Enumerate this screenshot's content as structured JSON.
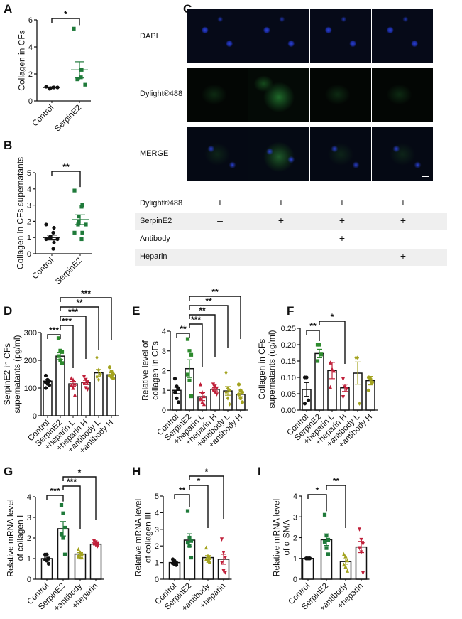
{
  "panel_letters": [
    "A",
    "B",
    "C",
    "D",
    "E",
    "F",
    "G",
    "H",
    "I"
  ],
  "colors": {
    "control": "#111111",
    "serpine2": "#1f7a3a",
    "serpine2_bright": "#2e8b2e",
    "heparin": "#c0203a",
    "antibody": "#a3a31f"
  },
  "microscopy": {
    "row_labels": [
      "DAPI",
      "Dylight®488",
      "MERGE"
    ],
    "table": {
      "rows": [
        {
          "label": "Dylight®488",
          "values": [
            "+",
            "+",
            "+",
            "+"
          ]
        },
        {
          "label": "SerpinE2",
          "values": [
            "–",
            "+",
            "+",
            "+"
          ]
        },
        {
          "label": "Antibody",
          "values": [
            "–",
            "–",
            "+",
            "–"
          ]
        },
        {
          "label": "Heparin",
          "values": [
            "–",
            "–",
            "–",
            "+"
          ]
        }
      ]
    }
  },
  "chart_data": [
    {
      "panel": "A",
      "type": "scatter",
      "ylabel": "Collagen in CFs",
      "ylim": [
        0,
        6
      ],
      "yticks": [
        "0",
        "2",
        "4",
        "6"
      ],
      "ytick_values": [
        0,
        2,
        4,
        6
      ],
      "categories": [
        "Control",
        "SerpinE2"
      ],
      "groups": [
        {
          "mean": 1.0,
          "sem": 0.03,
          "points": [
            1.05,
            1.0,
            1.0,
            0.95,
            0.9,
            1.0
          ],
          "color": "#111111",
          "marker": "circle"
        },
        {
          "mean": 2.3,
          "sem": 0.6,
          "points": [
            5.35,
            2.3,
            1.75,
            1.65,
            1.6,
            1.2
          ],
          "color": "#1f7a3a",
          "marker": "square"
        }
      ],
      "bars": false,
      "significance": [
        {
          "from": 0,
          "to": 1,
          "text": "*"
        }
      ]
    },
    {
      "panel": "B",
      "type": "scatter",
      "ylabel": "Collagen in CFs supernatants",
      "ylim": [
        0,
        5
      ],
      "yticks": [
        "0",
        "1",
        "2",
        "3",
        "4",
        "5"
      ],
      "ytick_values": [
        0,
        1,
        2,
        3,
        4,
        5
      ],
      "categories": [
        "Control",
        "SerpinE2"
      ],
      "groups": [
        {
          "mean": 1.0,
          "sem": 0.15,
          "points": [
            1.8,
            1.6,
            1.3,
            1.05,
            1.0,
            0.9,
            0.9,
            0.7,
            0.3,
            1.0
          ],
          "color": "#111111",
          "marker": "circle"
        },
        {
          "mean": 2.1,
          "sem": 0.3,
          "points": [
            3.9,
            3.0,
            2.9,
            2.3,
            1.8,
            1.8,
            1.3,
            1.3,
            0.9,
            2.0
          ],
          "color": "#1f7a3a",
          "marker": "square"
        }
      ],
      "bars": false,
      "significance": [
        {
          "from": 0,
          "to": 1,
          "text": "**"
        }
      ]
    },
    {
      "panel": "D",
      "type": "bar",
      "ylabel": "SerpinE2 in CFs supernatants  (pg/ml)",
      "ylim": [
        0,
        300
      ],
      "yticks": [
        "0",
        "100",
        "200",
        "300"
      ],
      "ytick_values": [
        0,
        100,
        200,
        300
      ],
      "categories": [
        "Control",
        "SerpinE2",
        "+heparin L",
        "+heparin H",
        "+antibody L",
        "+antibody H"
      ],
      "groups": [
        {
          "mean": 125,
          "sem": 6,
          "points": [
            145,
            130,
            125,
            120,
            115,
            110,
            100
          ],
          "color": "#111111",
          "marker": "circle"
        },
        {
          "mean": 215,
          "sem": 12,
          "points": [
            280,
            235,
            230,
            215,
            200,
            190
          ],
          "color": "#2e8b2e",
          "marker": "square"
        },
        {
          "mean": 115,
          "sem": 9,
          "points": [
            135,
            130,
            115,
            110,
            100,
            75
          ],
          "color": "#c0203a",
          "marker": "triangle"
        },
        {
          "mean": 120,
          "sem": 8,
          "points": [
            140,
            130,
            120,
            115,
            100,
            95
          ],
          "color": "#c0203a",
          "marker": "triangle-down"
        },
        {
          "mean": 155,
          "sem": 12,
          "points": [
            210,
            165,
            150,
            140,
            130
          ],
          "color": "#a3a31f",
          "marker": "diamond"
        },
        {
          "mean": 148,
          "sem": 7,
          "points": [
            175,
            160,
            150,
            145,
            140,
            135
          ],
          "color": "#a3a31f",
          "marker": "circle"
        }
      ],
      "bars": true,
      "significance": [
        {
          "from": 0,
          "to": 1,
          "text": "***"
        },
        {
          "from": 1,
          "to": 2,
          "text": "***"
        },
        {
          "from": 1,
          "to": 3,
          "text": "***"
        },
        {
          "from": 1,
          "to": 4,
          "text": "**"
        },
        {
          "from": 1,
          "to": 5,
          "text": "***"
        }
      ]
    },
    {
      "panel": "E",
      "type": "bar",
      "ylabel": "Relative level of collagen in CFs",
      "ylim": [
        0,
        4
      ],
      "yticks": [
        "0",
        "1",
        "2",
        "3",
        "4"
      ],
      "ytick_values": [
        0,
        1,
        2,
        3,
        4
      ],
      "categories": [
        "Control",
        "SerpinE2",
        "+heparin L",
        "+heparin H",
        "+antibody L",
        "+antibody H"
      ],
      "groups": [
        {
          "mean": 1.0,
          "sem": 0.17,
          "points": [
            1.6,
            1.2,
            1.1,
            0.9,
            0.6,
            0.4
          ],
          "color": "#111111",
          "marker": "circle"
        },
        {
          "mean": 2.1,
          "sem": 0.45,
          "points": [
            3.6,
            3.0,
            2.8,
            1.8,
            1.5,
            0.7
          ],
          "color": "#2e8b2e",
          "marker": "square"
        },
        {
          "mean": 0.68,
          "sem": 0.2,
          "points": [
            1.3,
            0.9,
            0.7,
            0.6,
            0.4,
            0.3
          ],
          "color": "#c0203a",
          "marker": "triangle"
        },
        {
          "mean": 1.05,
          "sem": 0.08,
          "points": [
            1.3,
            1.2,
            1.1,
            1.0,
            0.9,
            0.8
          ],
          "color": "#c0203a",
          "marker": "triangle-down"
        },
        {
          "mean": 0.97,
          "sem": 0.22,
          "points": [
            1.9,
            1.1,
            1.0,
            0.9,
            0.6,
            0.3
          ],
          "color": "#a3a31f",
          "marker": "diamond"
        },
        {
          "mean": 0.8,
          "sem": 0.12,
          "points": [
            1.3,
            1.0,
            0.9,
            0.8,
            0.6,
            0.4
          ],
          "color": "#a3a31f",
          "marker": "circle"
        }
      ],
      "bars": true,
      "significance": [
        {
          "from": 0,
          "to": 1,
          "text": "**"
        },
        {
          "from": 1,
          "to": 2,
          "text": "***"
        },
        {
          "from": 1,
          "to": 3,
          "text": "**"
        },
        {
          "from": 1,
          "to": 4,
          "text": "**"
        },
        {
          "from": 1,
          "to": 5,
          "text": "**"
        }
      ]
    },
    {
      "panel": "F",
      "type": "bar",
      "ylabel": "Collagen in CFs supernatants (ug/ml)",
      "ylim": [
        0,
        0.25
      ],
      "yticks": [
        "0.00",
        "0.05",
        "0.10",
        "0.15",
        "0.20",
        "0.25"
      ],
      "ytick_values": [
        0,
        0.05,
        0.1,
        0.15,
        0.2,
        0.25
      ],
      "categories": [
        "Control",
        "SerpinE2",
        "+heparin L",
        "+heparin H",
        "+antibody L",
        "+antibody H"
      ],
      "groups": [
        {
          "mean": 0.063,
          "sem": 0.021,
          "points": [
            0.1,
            0.1,
            0.03,
            0.02
          ],
          "color": "#111111",
          "marker": "circle"
        },
        {
          "mean": 0.173,
          "sem": 0.013,
          "points": [
            0.2,
            0.2,
            0.17,
            0.15
          ],
          "color": "#2e8b2e",
          "marker": "square"
        },
        {
          "mean": 0.121,
          "sem": 0.025,
          "points": [
            0.145,
            0.125,
            0.12,
            0.07
          ],
          "color": "#c0203a",
          "marker": "triangle"
        },
        {
          "mean": 0.068,
          "sem": 0.011,
          "points": [
            0.095,
            0.07,
            0.065,
            0.04
          ],
          "color": "#c0203a",
          "marker": "triangle-down"
        },
        {
          "mean": 0.113,
          "sem": 0.034,
          "points": [
            0.16,
            0.16,
            0.02
          ],
          "color": "#a3a31f",
          "marker": "diamond"
        },
        {
          "mean": 0.09,
          "sem": 0.013,
          "points": [
            0.1,
            0.095,
            0.085,
            0.06
          ],
          "color": "#a3a31f",
          "marker": "circle"
        }
      ],
      "bars": true,
      "significance": [
        {
          "from": 0,
          "to": 1,
          "text": "**"
        },
        {
          "from": 1,
          "to": 3,
          "text": "*"
        }
      ]
    },
    {
      "panel": "G",
      "type": "bar",
      "ylabel": "Relative mRNA level of collagen I",
      "ylim": [
        0,
        4
      ],
      "yticks": [
        "0",
        "1",
        "2",
        "3",
        "4"
      ],
      "ytick_values": [
        0,
        1,
        2,
        3,
        4
      ],
      "categories": [
        "Control",
        "SerpinE2",
        "+antibody",
        "+heparin"
      ],
      "groups": [
        {
          "mean": 1.0,
          "sem": 0.07,
          "points": [
            1.2,
            1.2,
            1.0,
            0.95,
            0.9,
            0.75
          ],
          "color": "#111111",
          "marker": "circle"
        },
        {
          "mean": 2.45,
          "sem": 0.35,
          "points": [
            3.6,
            3.2,
            2.5,
            2.2,
            2.0,
            1.2
          ],
          "color": "#1f7a3a",
          "marker": "square"
        },
        {
          "mean": 1.22,
          "sem": 0.07,
          "points": [
            1.45,
            1.3,
            1.25,
            1.1,
            1.05,
            1.05
          ],
          "color": "#a3a31f",
          "marker": "triangle"
        },
        {
          "mean": 1.7,
          "sem": 0.04,
          "points": [
            1.85,
            1.8,
            1.75,
            1.7,
            1.65,
            1.6
          ],
          "color": "#c0203a",
          "marker": "triangle-down"
        }
      ],
      "bars": true,
      "significance": [
        {
          "from": 0,
          "to": 1,
          "text": "***"
        },
        {
          "from": 1,
          "to": 2,
          "text": "***"
        },
        {
          "from": 1,
          "to": 3,
          "text": "*"
        }
      ]
    },
    {
      "panel": "H",
      "type": "bar",
      "ylabel": "Relative mRNA level of collagen III",
      "ylim": [
        0,
        5
      ],
      "yticks": [
        "0",
        "1",
        "2",
        "3",
        "4",
        "5"
      ],
      "ytick_values": [
        0,
        1,
        2,
        3,
        4,
        5
      ],
      "categories": [
        "Control",
        "SerpinE2",
        "+antibody",
        "+heparin"
      ],
      "groups": [
        {
          "mean": 1.0,
          "sem": 0.06,
          "points": [
            1.2,
            1.1,
            1.0,
            0.95,
            0.9,
            0.85
          ],
          "color": "#111111",
          "marker": "circle"
        },
        {
          "mean": 2.35,
          "sem": 0.38,
          "points": [
            4.1,
            2.5,
            2.3,
            2.2,
            2.0,
            1.3
          ],
          "color": "#1f7a3a",
          "marker": "square"
        },
        {
          "mean": 1.3,
          "sem": 0.12,
          "points": [
            1.9,
            1.4,
            1.3,
            1.2,
            1.1,
            1.05
          ],
          "color": "#a3a31f",
          "marker": "triangle"
        },
        {
          "mean": 1.2,
          "sem": 0.3,
          "points": [
            2.4,
            1.6,
            1.3,
            1.0,
            0.5,
            0.4
          ],
          "color": "#c0203a",
          "marker": "triangle-down"
        }
      ],
      "bars": true,
      "significance": [
        {
          "from": 0,
          "to": 1,
          "text": "**"
        },
        {
          "from": 1,
          "to": 2,
          "text": "*"
        },
        {
          "from": 1,
          "to": 3,
          "text": "*"
        }
      ]
    },
    {
      "panel": "I",
      "type": "bar",
      "ylabel": "Relative mRNA level of α-SMA",
      "ylim": [
        0,
        4
      ],
      "yticks": [
        "0",
        "1",
        "2",
        "3",
        "4"
      ],
      "ytick_values": [
        0,
        1,
        2,
        3,
        4
      ],
      "categories": [
        "Control",
        "SerpinE2",
        "+antibody",
        "+heparin"
      ],
      "groups": [
        {
          "mean": 1.0,
          "sem": 0.01,
          "points": [
            1,
            1,
            1,
            1,
            1,
            1
          ],
          "color": "#111111",
          "marker": "circle"
        },
        {
          "mean": 1.9,
          "sem": 0.28,
          "points": [
            3.1,
            2.1,
            1.9,
            1.8,
            1.5,
            1.2
          ],
          "color": "#1f7a3a",
          "marker": "square"
        },
        {
          "mean": 0.85,
          "sem": 0.13,
          "points": [
            1.2,
            1.1,
            0.9,
            0.7,
            0.6,
            0.4
          ],
          "color": "#a3a31f",
          "marker": "triangle"
        },
        {
          "mean": 1.55,
          "sem": 0.27,
          "points": [
            2.4,
            1.9,
            1.7,
            1.5,
            1.3,
            0.3
          ],
          "color": "#c0203a",
          "marker": "triangle-down"
        }
      ],
      "bars": true,
      "significance": [
        {
          "from": 0,
          "to": 1,
          "text": "*"
        },
        {
          "from": 1,
          "to": 2,
          "text": "**"
        }
      ]
    }
  ]
}
